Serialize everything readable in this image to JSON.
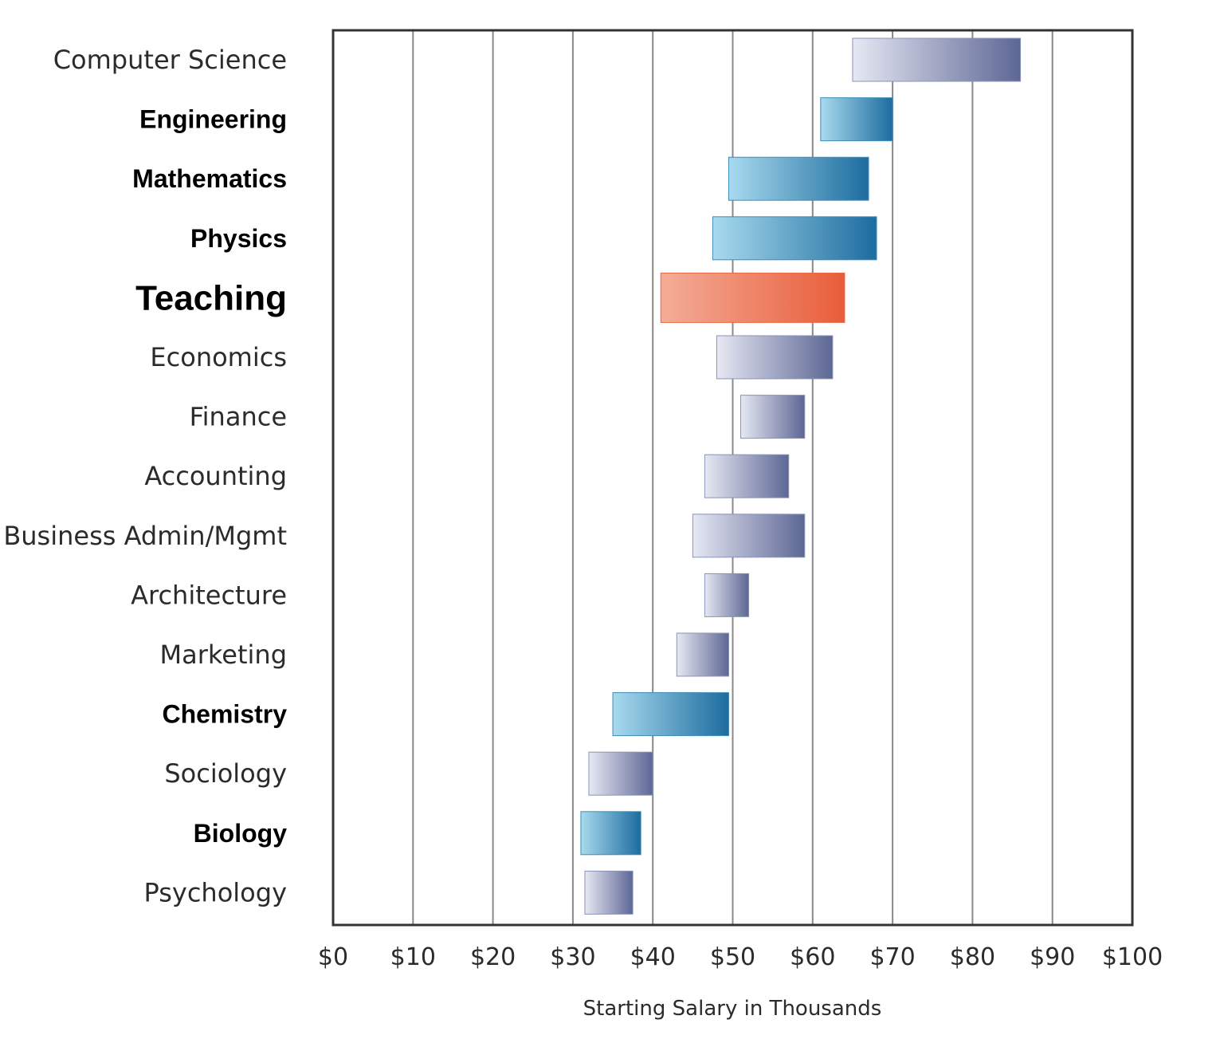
{
  "chart_data": {
    "type": "bar",
    "subtype": "floating-range-horizontal",
    "title": "",
    "xlabel": "Starting Salary in Thousands",
    "ylabel": "",
    "xlim": [
      0,
      100
    ],
    "x_ticks": [
      0,
      10,
      20,
      30,
      40,
      50,
      60,
      70,
      80,
      90,
      100
    ],
    "x_tick_labels": [
      "$0",
      "$10",
      "$20",
      "$30",
      "$40",
      "$50",
      "$60",
      "$70",
      "$80",
      "$90",
      "$100"
    ],
    "grid": "vertical",
    "categories": [
      "Computer Science",
      "Engineering",
      "Mathematics",
      "Physics",
      "Teaching",
      "Economics",
      "Finance",
      "Accounting",
      "Business Admin/Mgmt",
      "Architecture",
      "Marketing",
      "Chemistry",
      "Sociology",
      "Biology",
      "Psychology"
    ],
    "ranges": [
      [
        65,
        86
      ],
      [
        61,
        70
      ],
      [
        49.5,
        67
      ],
      [
        47.5,
        68
      ],
      [
        41,
        64
      ],
      [
        48,
        62.5
      ],
      [
        51,
        59
      ],
      [
        46.5,
        57
      ],
      [
        45,
        59
      ],
      [
        46.5,
        52
      ],
      [
        43,
        49.5
      ],
      [
        35,
        49.5
      ],
      [
        32,
        40
      ],
      [
        31,
        38.5
      ],
      [
        31.5,
        37.5
      ]
    ],
    "groups": [
      "other",
      "stem",
      "stem",
      "stem",
      "teaching",
      "other",
      "other",
      "other",
      "other",
      "other",
      "other",
      "stem",
      "other",
      "stem",
      "other"
    ],
    "colors": {
      "other_start": "#e6e8f3",
      "other_end": "#5d6795",
      "stem_start": "#a8daee",
      "stem_end": "#1c6c9f",
      "teaching_start": "#f4ad98",
      "teaching_end": "#e85d3a",
      "teaching_label": "#e8704d",
      "frame": "#333333",
      "grid": "#888888"
    }
  }
}
